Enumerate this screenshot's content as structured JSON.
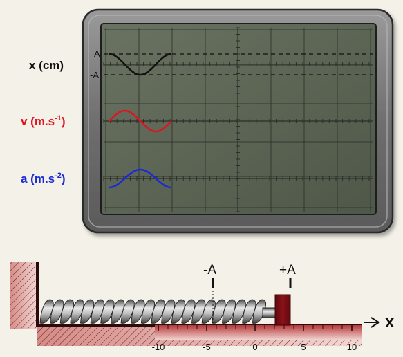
{
  "scope": {
    "x_label": "x (cm)",
    "x_amp_top": "A",
    "x_amp_bottom": "-A",
    "v_label_main": "v (m.s",
    "v_label_exp": "-1",
    "v_label_end": ")",
    "a_label_main": "a (m.s",
    "a_label_exp": "-2",
    "a_label_end": ")",
    "colors": {
      "x_trace": "#111111",
      "v_trace": "#e0141e",
      "a_trace": "#1a2ad6",
      "v_label": "#e0141e",
      "a_label": "#1a2ad6",
      "screen": "#586052",
      "grid": "#2b2f28"
    }
  },
  "apparatus": {
    "marker_minus": "-A",
    "marker_plus": "+A",
    "axis_label": "x",
    "ruler_ticks": [
      "-10",
      "-5",
      "0",
      "5",
      "10"
    ],
    "colors": {
      "block": "#7a0f14",
      "ruler": "#a02a2a",
      "spring": "#8e8e8e"
    }
  }
}
